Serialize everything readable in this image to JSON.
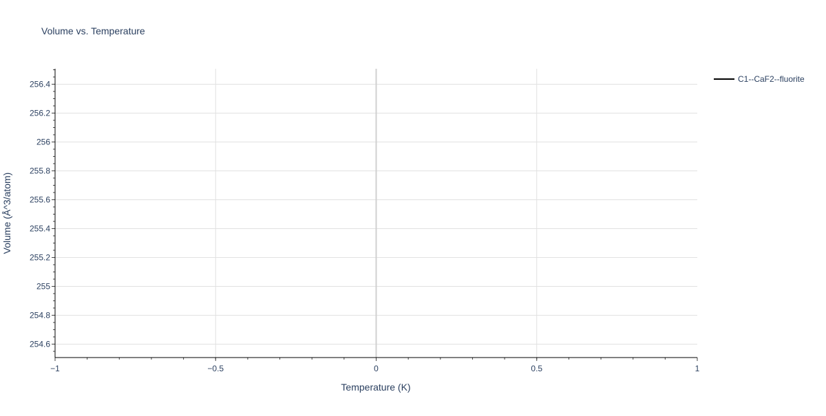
{
  "chart_data": {
    "type": "line",
    "title": "Volume vs. Temperature",
    "xlabel": "Temperature (K)",
    "ylabel": "Volume (Å^3/atom)",
    "xlim": [
      -1,
      1
    ],
    "ylim": [
      254.507,
      256.507
    ],
    "x_ticks": [
      -1,
      -0.5,
      0,
      0.5,
      1
    ],
    "x_tick_labels": [
      "−1",
      "−0.5",
      "0",
      "0.5",
      "1"
    ],
    "y_ticks": [
      254.6,
      254.8,
      255,
      255.2,
      255.4,
      255.6,
      255.8,
      256,
      256.2,
      256.4
    ],
    "y_tick_labels": [
      "254.6",
      "254.8",
      "255",
      "255.2",
      "255.4",
      "255.6",
      "255.8",
      "256",
      "256.2",
      "256.4"
    ],
    "grid": true,
    "legend_position": "top-right",
    "series": [
      {
        "name": "C1--CaF2--fluorite",
        "color": "#000000",
        "x": [],
        "y": []
      }
    ]
  }
}
